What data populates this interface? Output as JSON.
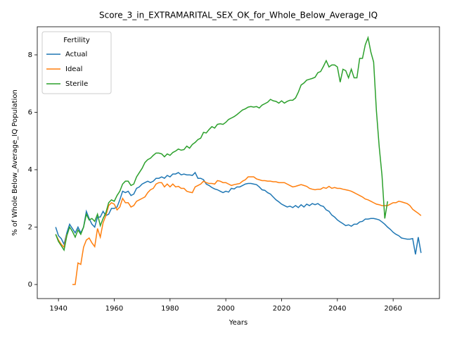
{
  "chart_data": {
    "type": "line",
    "title": "Score_3_in_EXTRAMARITAL_SEX_OK_for_Whole_Below_Average_IQ",
    "x_label": "Years",
    "y_label": "% of Whole Below_Average_IQ Population",
    "legend_title": "Fertility",
    "legend_position": "upper left",
    "xlim": [
      1932.4,
      2076.6
    ],
    "ylim": [
      -0.49,
      8.98
    ],
    "xticks": [
      1940,
      1960,
      1980,
      2000,
      2020,
      2040,
      2060
    ],
    "yticks": [
      0,
      2,
      4,
      6,
      8
    ],
    "x": [
      1939,
      1940,
      1941,
      1942,
      1943,
      1944,
      1945,
      1946,
      1947,
      1948,
      1949,
      1950,
      1951,
      1952,
      1953,
      1954,
      1955,
      1956,
      1957,
      1958,
      1959,
      1960,
      1961,
      1962,
      1963,
      1964,
      1965,
      1966,
      1967,
      1968,
      1969,
      1970,
      1971,
      1972,
      1973,
      1974,
      1975,
      1976,
      1977,
      1978,
      1979,
      1980,
      1981,
      1982,
      1983,
      1984,
      1985,
      1986,
      1987,
      1988,
      1989,
      1990,
      1991,
      1992,
      1993,
      1994,
      1995,
      1996,
      1997,
      1998,
      1999,
      2000,
      2001,
      2002,
      2003,
      2004,
      2005,
      2006,
      2007,
      2008,
      2009,
      2010,
      2011,
      2012,
      2013,
      2014,
      2015,
      2016,
      2017,
      2018,
      2019,
      2020,
      2021,
      2022,
      2023,
      2024,
      2025,
      2026,
      2027,
      2028,
      2029,
      2030,
      2031,
      2032,
      2033,
      2034,
      2035,
      2036,
      2037,
      2038,
      2039,
      2040,
      2041,
      2042,
      2043,
      2044,
      2045,
      2046,
      2047,
      2048,
      2049,
      2050,
      2051,
      2052,
      2053,
      2054,
      2055,
      2056,
      2057,
      2058,
      2059,
      2060,
      2061,
      2062,
      2063,
      2064,
      2065,
      2066,
      2067,
      2068,
      2069,
      2070
    ],
    "series": [
      {
        "name": "Actual",
        "color": "#1f77b4",
        "values": [
          2.0,
          1.7,
          1.6,
          1.4,
          1.8,
          2.1,
          1.95,
          1.8,
          2.0,
          1.8,
          2.0,
          2.55,
          2.3,
          2.1,
          2.0,
          2.35,
          2.35,
          2.55,
          2.4,
          2.45,
          2.65,
          2.65,
          2.7,
          2.95,
          3.25,
          3.2,
          3.25,
          3.1,
          3.15,
          3.35,
          3.4,
          3.5,
          3.55,
          3.6,
          3.55,
          3.6,
          3.7,
          3.7,
          3.75,
          3.7,
          3.8,
          3.75,
          3.85,
          3.85,
          3.9,
          3.82,
          3.85,
          3.82,
          3.82,
          3.8,
          3.9,
          3.7,
          3.7,
          3.65,
          3.5,
          3.45,
          3.38,
          3.33,
          3.3,
          3.25,
          3.2,
          3.25,
          3.22,
          3.35,
          3.33,
          3.4,
          3.4,
          3.45,
          3.5,
          3.52,
          3.52,
          3.5,
          3.48,
          3.4,
          3.3,
          3.28,
          3.2,
          3.15,
          3.05,
          2.95,
          2.88,
          2.8,
          2.75,
          2.7,
          2.73,
          2.68,
          2.75,
          2.68,
          2.78,
          2.7,
          2.8,
          2.75,
          2.82,
          2.78,
          2.82,
          2.75,
          2.72,
          2.6,
          2.55,
          2.42,
          2.35,
          2.25,
          2.18,
          2.12,
          2.05,
          2.08,
          2.03,
          2.1,
          2.1,
          2.18,
          2.2,
          2.28,
          2.28,
          2.3,
          2.3,
          2.28,
          2.25,
          2.18,
          2.1,
          2.0,
          1.92,
          1.82,
          1.75,
          1.7,
          1.62,
          1.6,
          1.58,
          1.58,
          1.6,
          1.05,
          1.65,
          1.1
        ]
      },
      {
        "name": "Ideal",
        "color": "#ff7f0e",
        "values": [
          1.75,
          1.55,
          1.4,
          1.3,
          1.75,
          null,
          0,
          0,
          0.75,
          0.7,
          1.3,
          1.55,
          1.62,
          1.45,
          1.32,
          1.95,
          1.65,
          2.15,
          2.4,
          2.75,
          2.85,
          2.8,
          2.6,
          2.7,
          3.0,
          2.85,
          2.85,
          2.7,
          2.75,
          2.9,
          2.95,
          3.0,
          3.05,
          3.2,
          3.3,
          3.35,
          3.5,
          3.55,
          3.55,
          3.4,
          3.5,
          3.4,
          3.5,
          3.4,
          3.42,
          3.35,
          3.35,
          3.25,
          3.22,
          3.2,
          3.4,
          3.45,
          3.5,
          3.6,
          3.55,
          3.52,
          3.52,
          3.5,
          3.62,
          3.6,
          3.55,
          3.55,
          3.5,
          3.45,
          3.48,
          3.5,
          3.52,
          3.6,
          3.65,
          3.75,
          3.75,
          3.75,
          3.68,
          3.65,
          3.62,
          3.62,
          3.6,
          3.6,
          3.58,
          3.58,
          3.55,
          3.55,
          3.55,
          3.5,
          3.45,
          3.4,
          3.42,
          3.45,
          3.48,
          3.45,
          3.42,
          3.35,
          3.32,
          3.3,
          3.32,
          3.32,
          3.38,
          3.35,
          3.42,
          3.35,
          3.38,
          3.35,
          3.35,
          3.32,
          3.3,
          3.28,
          3.25,
          3.2,
          3.15,
          3.1,
          3.05,
          2.98,
          2.95,
          2.9,
          2.85,
          2.8,
          2.78,
          2.75,
          2.75,
          2.75,
          2.8,
          2.85,
          2.85,
          2.9,
          2.88,
          2.85,
          2.82,
          2.75,
          2.62,
          2.55,
          2.48,
          2.4
        ]
      },
      {
        "name": "Sterile",
        "color": "#2ca02c",
        "values": [
          1.75,
          1.5,
          1.35,
          1.2,
          1.7,
          2.0,
          1.85,
          1.65,
          1.9,
          1.75,
          2.0,
          2.45,
          2.25,
          2.3,
          2.2,
          2.45,
          2.05,
          2.3,
          2.5,
          2.85,
          2.95,
          2.9,
          3.1,
          3.25,
          3.5,
          3.6,
          3.6,
          3.45,
          3.5,
          3.75,
          3.9,
          4.05,
          4.25,
          4.35,
          4.4,
          4.5,
          4.58,
          4.58,
          4.55,
          4.45,
          4.55,
          4.5,
          4.6,
          4.65,
          4.72,
          4.68,
          4.7,
          4.82,
          4.75,
          4.88,
          4.95,
          5.05,
          5.1,
          5.3,
          5.28,
          5.4,
          5.5,
          5.45,
          5.58,
          5.6,
          5.58,
          5.65,
          5.75,
          5.8,
          5.85,
          5.92,
          6.0,
          6.08,
          6.12,
          6.18,
          6.2,
          6.18,
          6.2,
          6.15,
          6.25,
          6.3,
          6.35,
          6.45,
          6.4,
          6.38,
          6.32,
          6.4,
          6.32,
          6.38,
          6.42,
          6.42,
          6.5,
          6.7,
          6.95,
          7.02,
          7.12,
          7.15,
          7.18,
          7.22,
          7.38,
          7.42,
          7.6,
          7.8,
          7.58,
          7.65,
          7.65,
          7.58,
          7.05,
          7.5,
          7.45,
          7.2,
          7.5,
          7.2,
          7.2,
          7.88,
          7.88,
          8.35,
          8.6,
          8.1,
          7.75,
          6.05,
          4.8,
          3.8,
          2.3,
          2.9,
          null,
          null,
          null,
          null,
          null,
          null,
          null,
          null,
          null,
          null,
          null,
          null
        ]
      }
    ]
  }
}
